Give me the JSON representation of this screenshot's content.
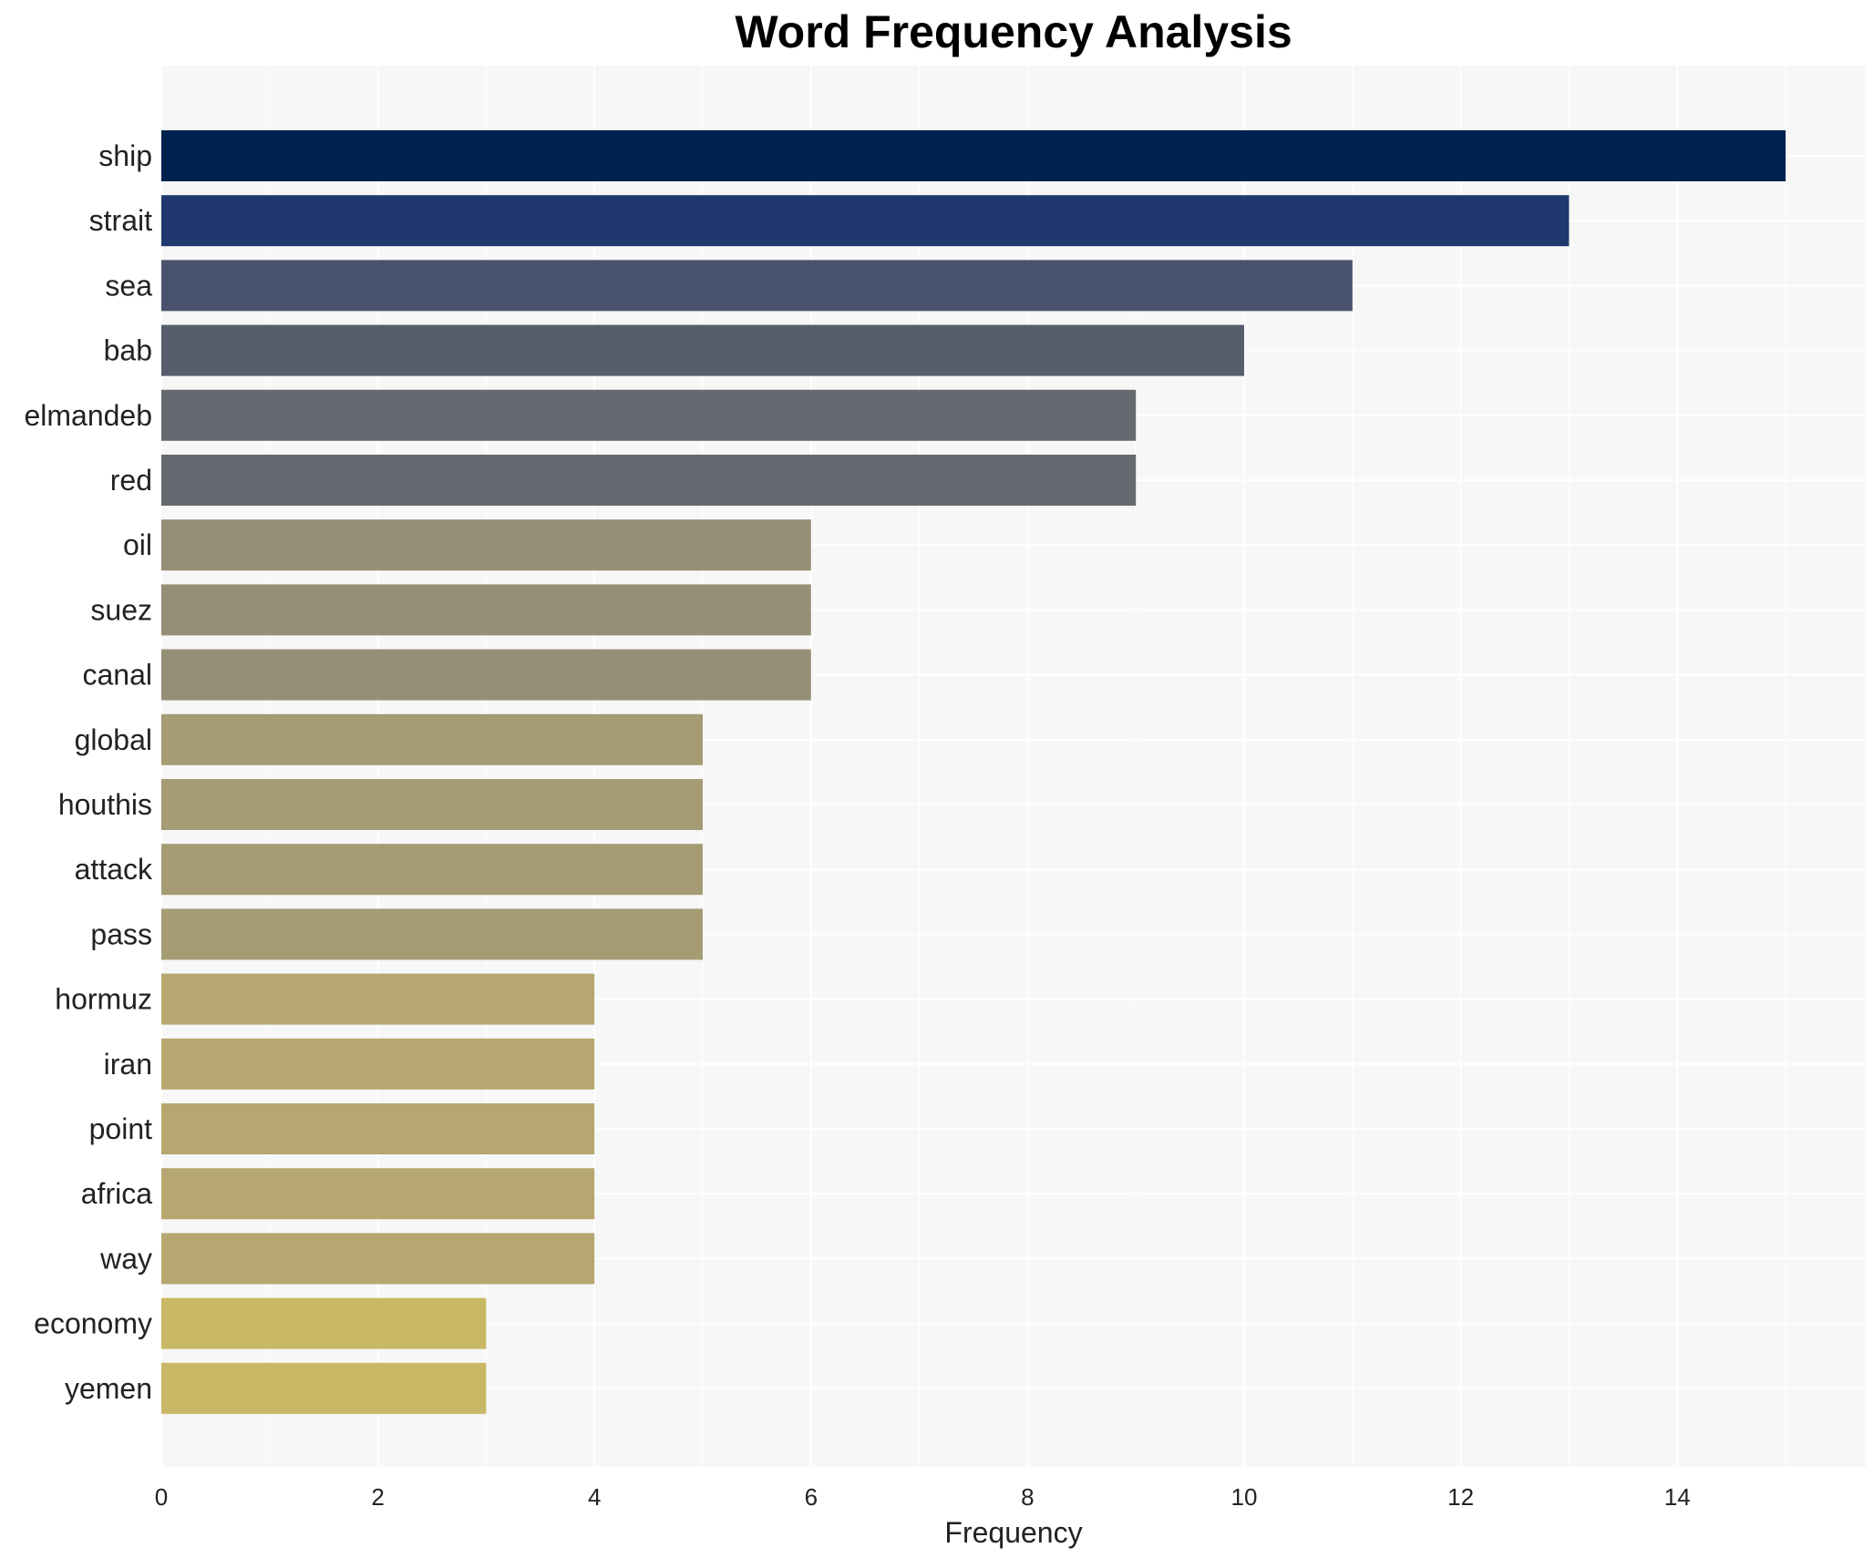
{
  "chart_data": {
    "type": "bar",
    "orientation": "horizontal",
    "title": "Word Frequency Analysis",
    "xlabel": "Frequency",
    "ylabel": "",
    "categories": [
      "ship",
      "strait",
      "sea",
      "bab",
      "elmandeb",
      "red",
      "oil",
      "suez",
      "canal",
      "global",
      "houthis",
      "attack",
      "pass",
      "hormuz",
      "iran",
      "point",
      "africa",
      "way",
      "economy",
      "yemen"
    ],
    "values": [
      15,
      13,
      11,
      10,
      9,
      9,
      6,
      6,
      6,
      5,
      5,
      5,
      5,
      4,
      4,
      4,
      4,
      4,
      3,
      3
    ],
    "colors": [
      "#00224e",
      "#1f386f",
      "#48526c",
      "#575d6d",
      "#666970",
      "#666970",
      "#958f77",
      "#958f77",
      "#958f77",
      "#a59c74",
      "#a59c74",
      "#a59c74",
      "#a59c74",
      "#b6a771",
      "#b6a771",
      "#b6a771",
      "#b6a771",
      "#b6a771",
      "#c8b866",
      "#c8b866"
    ],
    "xlim": [
      0,
      15.75
    ],
    "xticks": [
      0,
      2,
      4,
      6,
      8,
      10,
      12,
      14
    ],
    "grid": true,
    "background": "#f7f7f7",
    "legend": "none"
  }
}
